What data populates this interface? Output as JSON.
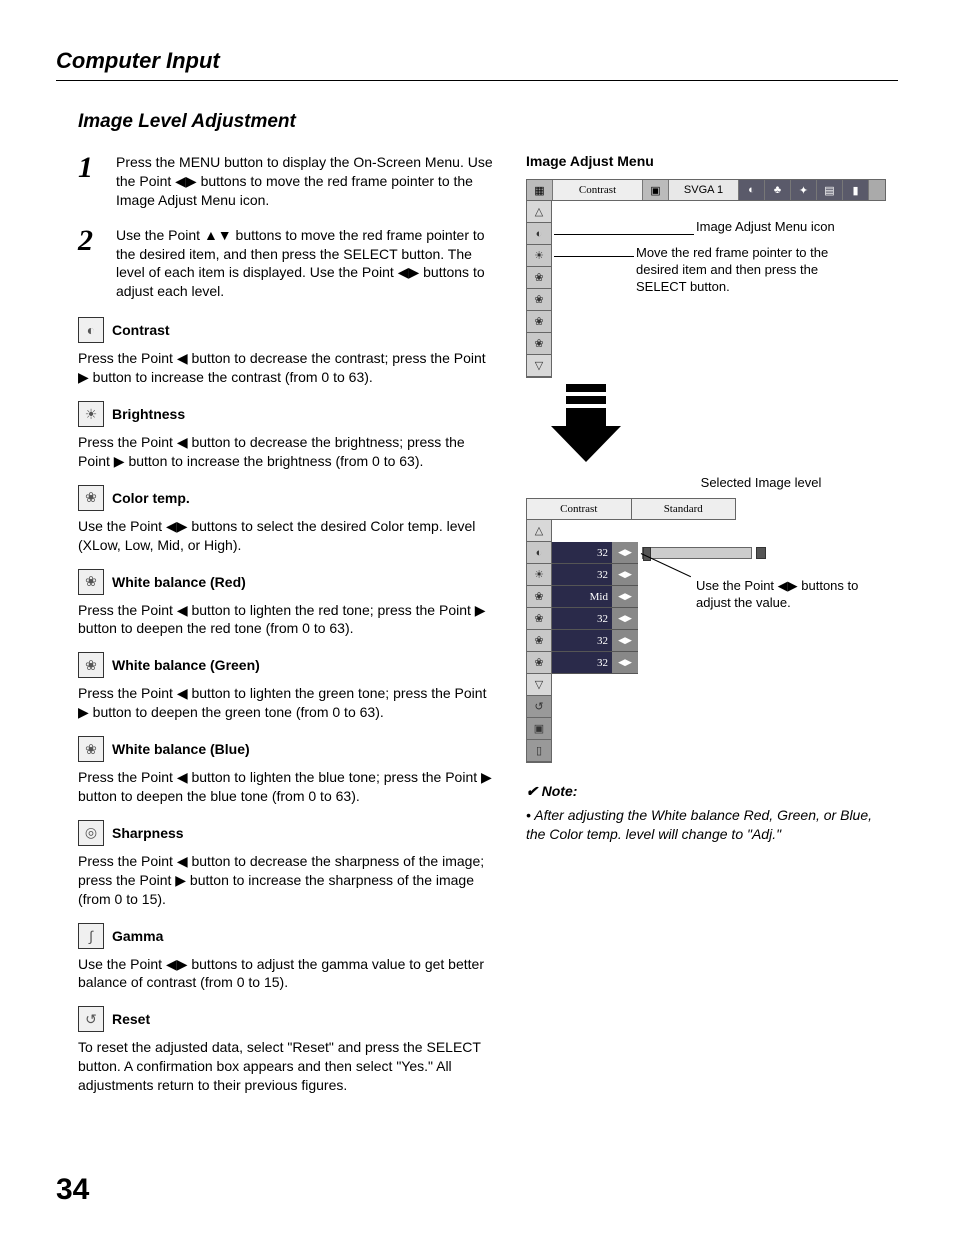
{
  "page": {
    "section_title": "Computer Input",
    "sub_title": "Image Level Adjustment",
    "page_number": "34"
  },
  "steps": [
    {
      "num": "1",
      "text": "Press the MENU button to display the On-Screen Menu.  Use the Point ◀▶ buttons to move the red frame pointer to the Image Adjust Menu icon."
    },
    {
      "num": "2",
      "text": "Use the Point ▲▼ buttons to move the red frame pointer to the desired item, and then press the SELECT button.  The level of each item is displayed. Use the Point ◀▶ buttons to adjust each level."
    }
  ],
  "items": [
    {
      "icon": "◐",
      "title": "Contrast",
      "text": "Press the Point ◀ button to decrease the contrast; press the Point ▶ button to increase the contrast (from 0 to 63)."
    },
    {
      "icon": "☀",
      "title": "Brightness",
      "text": "Press the Point ◀ button to decrease the brightness; press the Point ▶ button to increase the brightness (from 0 to 63)."
    },
    {
      "icon": "❀",
      "title": "Color temp.",
      "text": "Use the Point ◀▶ buttons to select the desired Color temp. level (XLow, Low, Mid, or High)."
    },
    {
      "icon": "❀",
      "title": "White balance (Red)",
      "text": "Press the Point ◀ button to lighten the red tone; press the Point ▶ button to deepen the red tone (from 0 to 63)."
    },
    {
      "icon": "❀",
      "title": "White balance (Green)",
      "text": "Press the Point ◀ button to lighten the green tone; press the Point ▶ button to deepen the green tone (from 0 to 63)."
    },
    {
      "icon": "❀",
      "title": "White balance (Blue)",
      "text": "Press the Point ◀ button to lighten the blue tone; press the Point ▶ button to deepen the blue tone (from 0 to 63)."
    },
    {
      "icon": "◎",
      "title": "Sharpness",
      "text": "Press the Point ◀ button to decrease the sharpness of the image; press the Point ▶ button to increase the sharpness of the image (from 0 to 15)."
    },
    {
      "icon": "∫",
      "title": "Gamma",
      "text": "Use the Point ◀▶ buttons to adjust the gamma value to get better balance of contrast (from 0 to 15)."
    },
    {
      "icon": "↺",
      "title": "Reset",
      "text": "To reset the adjusted data, select \"Reset\" and press the SELECT button. A confirmation box appears and then select \"Yes.\" All adjustments return to their previous figures."
    }
  ],
  "right": {
    "menu_title": "Image Adjust Menu",
    "top_bar": {
      "label": "Contrast",
      "mode": "SVGA 1"
    },
    "callouts": {
      "icon": "Image Adjust Menu icon",
      "pointer": "Move the red frame pointer to the desired item and then press the SELECT button.",
      "selected": "Selected Image level",
      "adjust": "Use the Point ◀▶ buttons to adjust the value."
    },
    "detail_bar": {
      "left": "Contrast",
      "right": "Standard"
    },
    "rows": [
      {
        "val": "32",
        "slider": true
      },
      {
        "val": "32"
      },
      {
        "val": "Mid"
      },
      {
        "val": "32"
      },
      {
        "val": "32"
      },
      {
        "val": "32"
      }
    ],
    "note_head": "✔ Note:",
    "note_body": "• After adjusting the White balance Red, Green, or Blue, the Color temp. level will change to \"Adj.\""
  }
}
